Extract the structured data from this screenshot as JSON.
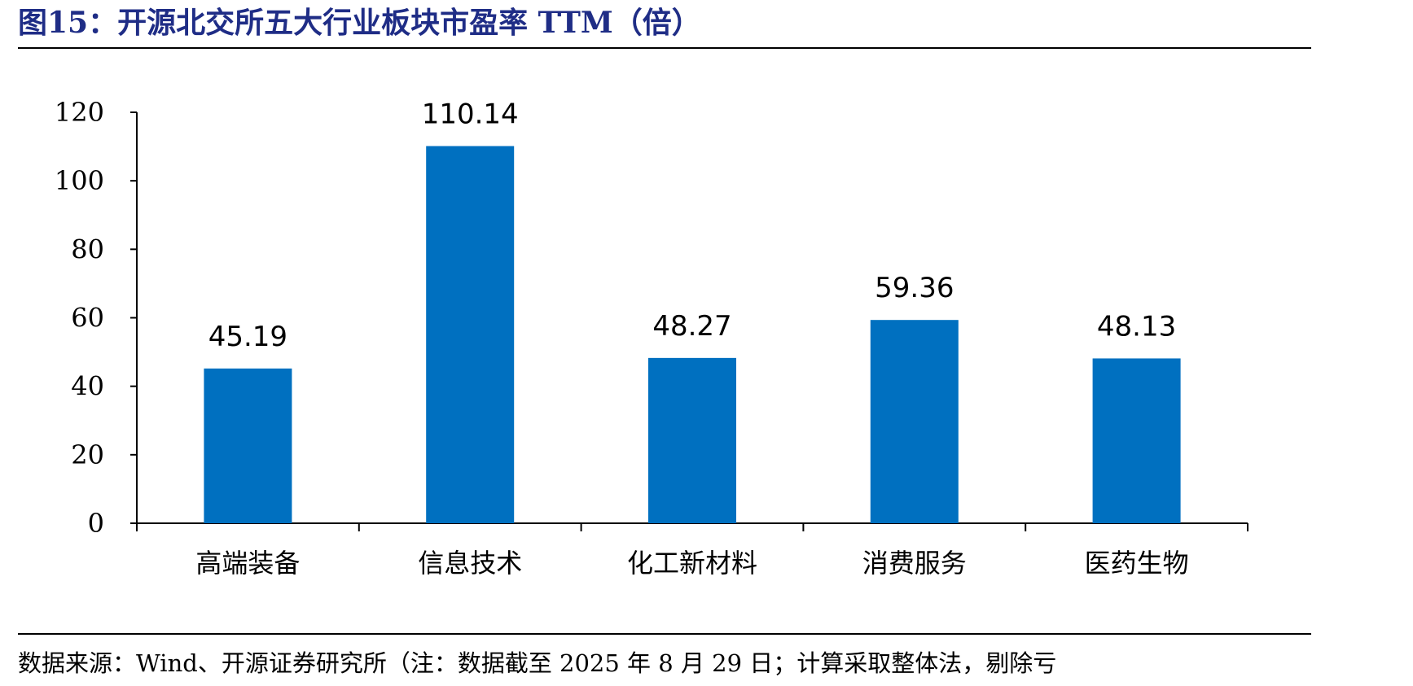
{
  "figure": {
    "title": "图15：开源北交所五大行业板块市盈率 TTM（倍）",
    "source": "数据来源：Wind、开源证券研究所（注：数据截至 2025 年 8 月 29 日；计算采取整体法，剔除亏"
  },
  "colors": {
    "bar": "#0070c0",
    "title": "#1f2d86"
  },
  "chart_data": {
    "type": "bar",
    "title": "开源北交所五大行业板块市盈率 TTM（倍）",
    "categories": [
      "高端装备",
      "信息技术",
      "化工新材料",
      "消费服务",
      "医药生物"
    ],
    "series": [
      {
        "values": [
          45.19,
          110.14,
          48.27,
          59.36,
          48.13
        ]
      }
    ],
    "data_labels": [
      "45.19",
      "110.14",
      "48.27",
      "59.36",
      "48.13"
    ],
    "yticks": [
      "0",
      "20",
      "40",
      "60",
      "80",
      "100",
      "120"
    ],
    "ylim": [
      0,
      120
    ],
    "xlabel": "",
    "ylabel": "",
    "grid": false,
    "legend": "none"
  }
}
